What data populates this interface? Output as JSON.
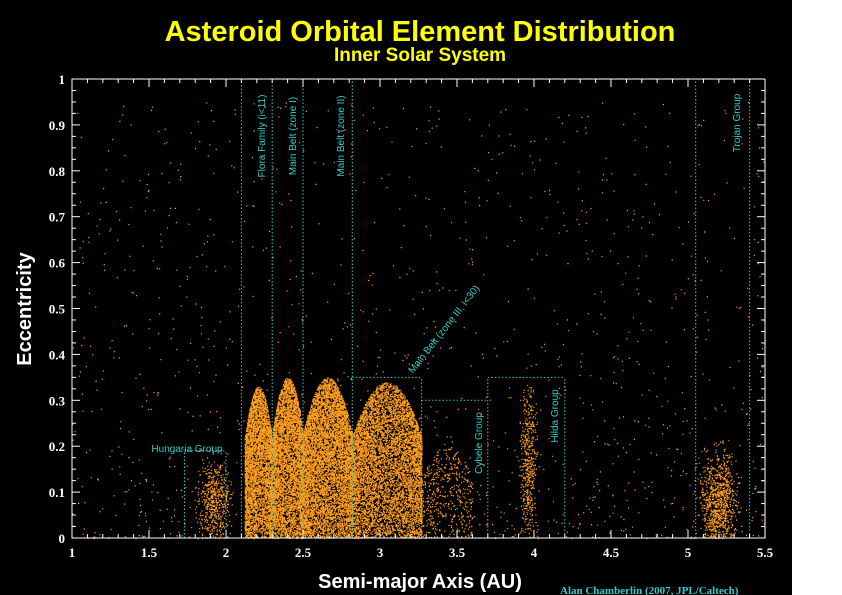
{
  "chart_data": {
    "type": "scatter",
    "title": "Asteroid Orbital Element Distribution",
    "subtitle": "Inner Solar System",
    "xlabel": "Semi-major Axis (AU)",
    "ylabel": "Eccentricity",
    "xlim": [
      1,
      5.5
    ],
    "ylim": [
      0,
      1
    ],
    "xticks": [
      "1",
      "1.5",
      "2",
      "2.5",
      "3",
      "3.5",
      "4",
      "4.5",
      "5",
      "5.5"
    ],
    "yticks": [
      "0",
      "0.1",
      "0.2",
      "0.3",
      "0.4",
      "0.5",
      "0.6",
      "0.7",
      "0.8",
      "0.9",
      "1"
    ],
    "credit": "Alan Chamberlin (2007, JPL/Caltech)",
    "grid": false,
    "colors": {
      "background": "#000000",
      "title": "#ffff00",
      "axis_labels": "#ffffff",
      "points": "#ff9f1c",
      "zones": "#33cccc",
      "credit": "#33cccc"
    },
    "zones": [
      {
        "label": "Hungaria Group",
        "x": [
          1.73,
          2.0
        ],
        "e_max": 0.19
      },
      {
        "label": "Flora Family (i<11)",
        "x": [
          2.1,
          2.3
        ],
        "e_max": 1.0
      },
      {
        "label": "Main Belt (zone I)",
        "x": [
          2.3,
          2.5
        ],
        "e_max": 1.0
      },
      {
        "label": "Main Belt (zone II)",
        "x": [
          2.5,
          2.82
        ],
        "e_max": 1.0
      },
      {
        "label": "Main Belt (zone III, i<30)",
        "x": [
          2.82,
          3.27
        ],
        "e_max": 0.35
      },
      {
        "label": "Cybele Group",
        "x": [
          3.27,
          3.7
        ],
        "e_max": 0.3
      },
      {
        "label": "Hilda Group",
        "x": [
          3.7,
          4.2
        ],
        "e_max": 0.35
      },
      {
        "label": "Trojan Group",
        "x": [
          5.05,
          5.4
        ],
        "e_max": 1.0
      }
    ],
    "clusters": [
      {
        "name": "Hungaria Group",
        "x_center": 1.92,
        "x_spread": 0.05,
        "e_center": 0.08,
        "e_spread": 0.04,
        "e_max": 0.2,
        "count": 500
      },
      {
        "name": "Flora Family (i<11)",
        "x_range": [
          2.12,
          2.3
        ],
        "e_range": [
          0.0,
          0.33
        ],
        "count": 4000
      },
      {
        "name": "Main Belt (zone I)",
        "x_range": [
          2.3,
          2.5
        ],
        "e_range": [
          0.0,
          0.35
        ],
        "count": 4500
      },
      {
        "name": "Main Belt (zone II)",
        "x_range": [
          2.5,
          2.82
        ],
        "e_range": [
          0.0,
          0.35
        ],
        "count": 6500
      },
      {
        "name": "Main Belt (zone III, i<30)",
        "x_range": [
          2.82,
          3.27
        ],
        "e_range": [
          0.0,
          0.34
        ],
        "count": 6500
      },
      {
        "name": "Cybele Group",
        "x_range": [
          3.27,
          3.6
        ],
        "e_range": [
          0.0,
          0.2
        ],
        "count": 450
      },
      {
        "name": "Hilda Group",
        "x_center": 3.96,
        "x_spread": 0.025,
        "e_center": 0.17,
        "e_spread": 0.08,
        "e_max": 0.33,
        "count": 450
      },
      {
        "name": "Trojan Group",
        "x_center": 5.2,
        "x_spread": 0.06,
        "e_center": 0.08,
        "e_spread": 0.05,
        "e_max": 0.25,
        "count": 900
      },
      {
        "name": "scattered",
        "x_range": [
          1.0,
          5.5
        ],
        "e_range": [
          0.0,
          0.95
        ],
        "count": 1400
      }
    ]
  }
}
